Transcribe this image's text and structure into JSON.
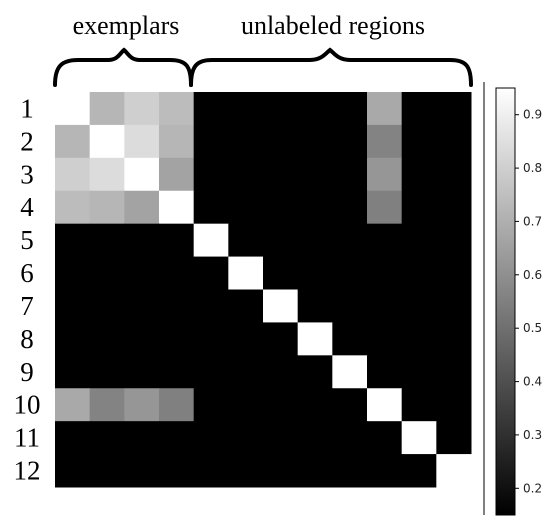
{
  "chart_data": {
    "type": "heatmap",
    "group_labels": {
      "left": "exemplars",
      "right": "unlabeled regions"
    },
    "row_labels": [
      "1",
      "2",
      "3",
      "4",
      "5",
      "6",
      "7",
      "8",
      "9",
      "10",
      "11",
      "12"
    ],
    "matrix": [
      [
        1.0,
        0.72,
        0.8,
        0.74,
        0.15,
        0.15,
        0.15,
        0.15,
        0.15,
        0.68,
        0.15,
        0.15
      ],
      [
        0.72,
        1.0,
        0.84,
        0.72,
        0.15,
        0.15,
        0.15,
        0.15,
        0.15,
        0.56,
        0.15,
        0.15
      ],
      [
        0.8,
        0.84,
        1.0,
        0.66,
        0.15,
        0.15,
        0.15,
        0.15,
        0.15,
        0.62,
        0.15,
        0.15
      ],
      [
        0.74,
        0.72,
        0.66,
        1.0,
        0.15,
        0.15,
        0.15,
        0.15,
        0.15,
        0.55,
        0.15,
        0.15
      ],
      [
        0.15,
        0.15,
        0.15,
        0.15,
        1.0,
        0.15,
        0.15,
        0.15,
        0.15,
        0.15,
        0.15,
        0.15
      ],
      [
        0.15,
        0.15,
        0.15,
        0.15,
        0.15,
        1.0,
        0.15,
        0.15,
        0.15,
        0.15,
        0.15,
        0.15
      ],
      [
        0.15,
        0.15,
        0.15,
        0.15,
        0.15,
        0.15,
        1.0,
        0.15,
        0.15,
        0.15,
        0.15,
        0.15
      ],
      [
        0.15,
        0.15,
        0.15,
        0.15,
        0.15,
        0.15,
        0.15,
        1.0,
        0.15,
        0.15,
        0.15,
        0.15
      ],
      [
        0.15,
        0.15,
        0.15,
        0.15,
        0.15,
        0.15,
        0.15,
        0.15,
        1.0,
        0.15,
        0.15,
        0.15
      ],
      [
        0.68,
        0.56,
        0.62,
        0.55,
        0.15,
        0.15,
        0.15,
        0.15,
        0.15,
        1.0,
        0.15,
        0.15
      ],
      [
        0.15,
        0.15,
        0.15,
        0.15,
        0.15,
        0.15,
        0.15,
        0.15,
        0.15,
        0.15,
        1.0,
        0.15
      ],
      [
        0.15,
        0.15,
        0.15,
        0.15,
        0.15,
        0.15,
        0.15,
        0.15,
        0.15,
        0.15,
        0.15,
        1.0
      ]
    ],
    "colorbar": {
      "ticks": [
        0.2,
        0.3,
        0.4,
        0.5,
        0.6,
        0.7,
        0.8,
        0.9
      ],
      "tick_labels": [
        "0.2",
        "0.3",
        "0.4",
        "0.5",
        "0.6",
        "0.7",
        "0.8",
        "0.9"
      ],
      "range": [
        0.15,
        0.95
      ]
    },
    "colormap": "gray",
    "grid": false
  }
}
